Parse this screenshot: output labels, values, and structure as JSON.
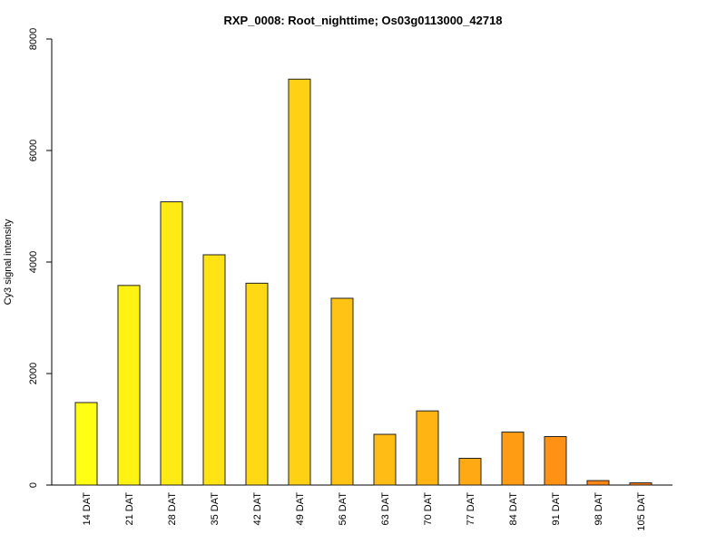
{
  "chart_data": {
    "type": "bar",
    "title": "RXP_0008: Root_nighttime; Os03g0113000_42718",
    "xlabel": "",
    "ylabel": "Cy3 signal intensity",
    "ylim": [
      0,
      8000
    ],
    "yticks": [
      0,
      2000,
      4000,
      6000,
      8000
    ],
    "grid": false,
    "legend": "none",
    "categories": [
      "14 DAT",
      "21 DAT",
      "28 DAT",
      "35 DAT",
      "42 DAT",
      "49 DAT",
      "56 DAT",
      "63 DAT",
      "70 DAT",
      "77 DAT",
      "84 DAT",
      "91 DAT",
      "98 DAT",
      "105 DAT"
    ],
    "values": [
      1480,
      3580,
      5080,
      4130,
      3620,
      7280,
      3350,
      910,
      1330,
      480,
      950,
      870,
      80,
      40
    ],
    "colors": [
      "#FFFF14",
      "#FFF314",
      "#FFEB14",
      "#FFE314",
      "#FFDA14",
      "#FFD014",
      "#FFC314",
      "#FFBC14",
      "#FFB414",
      "#FFA914",
      "#FF9C14",
      "#FF9114",
      "#FF8414",
      "#FF7A14"
    ]
  }
}
